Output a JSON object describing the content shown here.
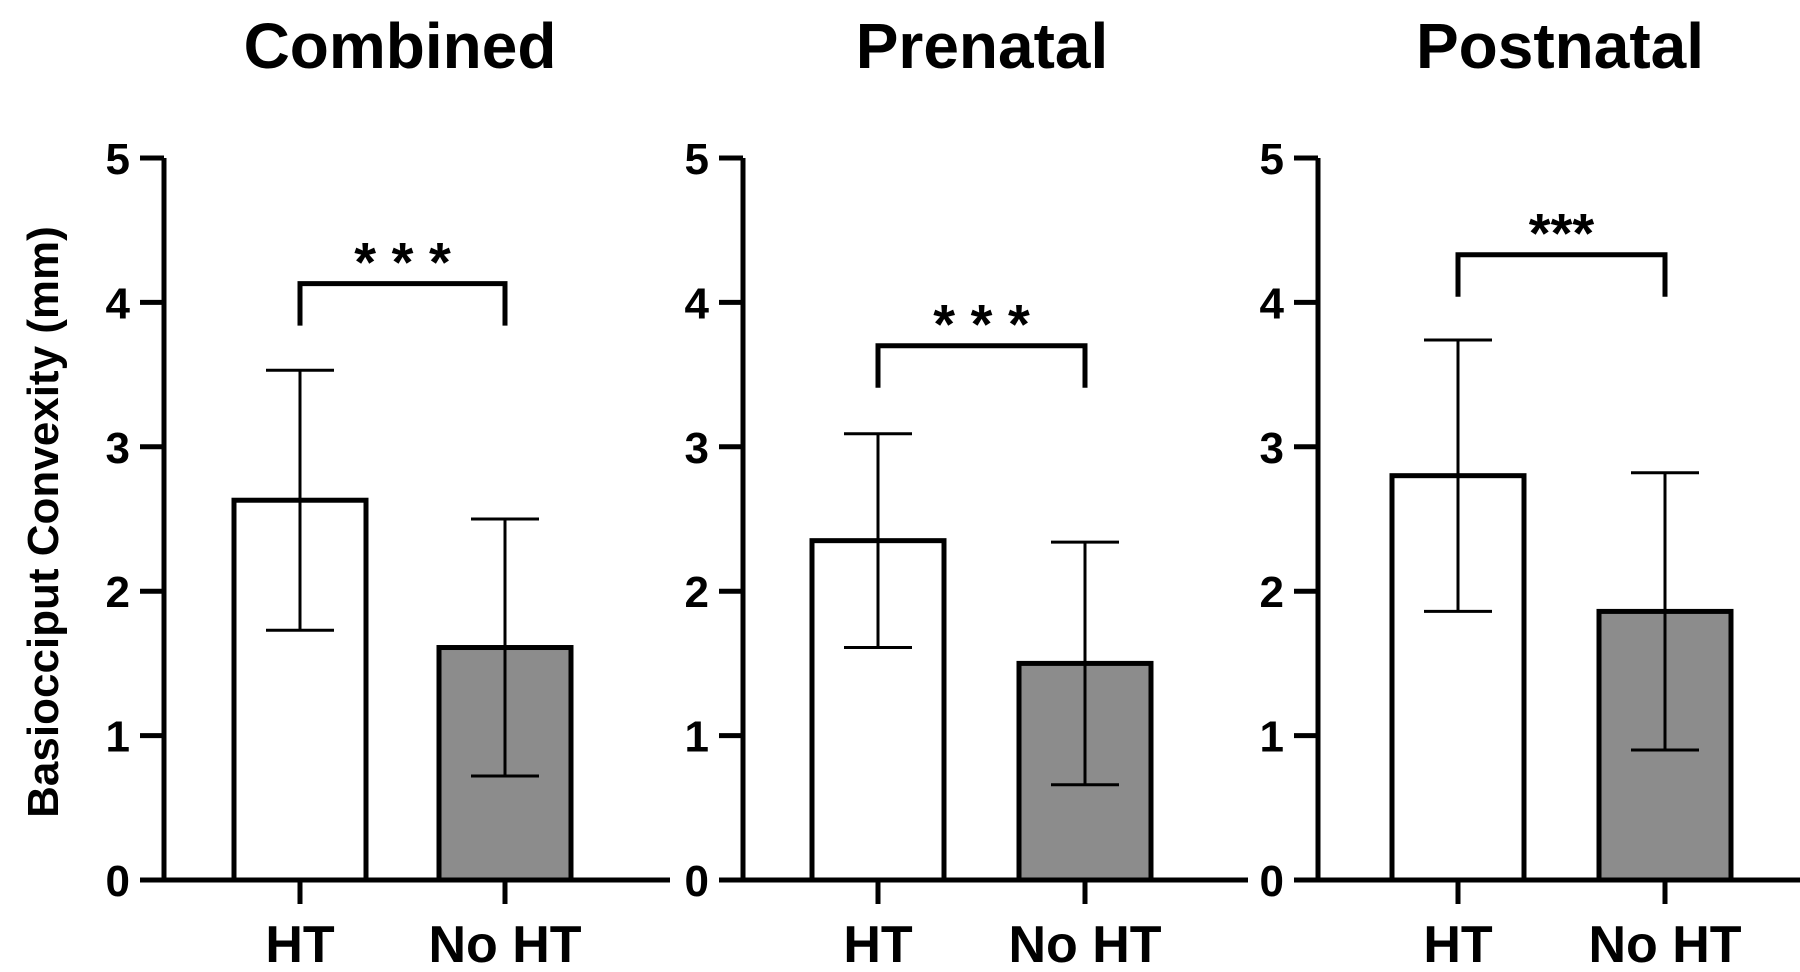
{
  "ylabel": "Basiocciput Convexity (mm)",
  "chart_data": [
    {
      "type": "bar",
      "title": "Combined",
      "categories": [
        "HT",
        "No HT"
      ],
      "values": [
        2.63,
        1.61
      ],
      "error": [
        0.9,
        0.89
      ],
      "bar_colors": [
        "#ffffff",
        "#8c8c8c"
      ],
      "ylim": [
        0,
        5
      ],
      "yticks": [
        "0",
        "1",
        "2",
        "3",
        "4",
        "5"
      ],
      "significance": "* * *",
      "bracket_y": 4.13
    },
    {
      "type": "bar",
      "title": "Prenatal",
      "categories": [
        "HT",
        "No HT"
      ],
      "values": [
        2.35,
        1.5
      ],
      "error": [
        0.74,
        0.84
      ],
      "bar_colors": [
        "#ffffff",
        "#8c8c8c"
      ],
      "ylim": [
        0,
        5
      ],
      "yticks": [
        "0",
        "1",
        "2",
        "3",
        "4",
        "5"
      ],
      "significance": "* * *",
      "bracket_y": 3.7
    },
    {
      "type": "bar",
      "title": "Postnatal",
      "categories": [
        "HT",
        "No HT"
      ],
      "values": [
        2.8,
        1.86
      ],
      "error": [
        0.94,
        0.96
      ],
      "bar_colors": [
        "#ffffff",
        "#8c8c8c"
      ],
      "ylim": [
        0,
        5
      ],
      "yticks": [
        "0",
        "1",
        "2",
        "3",
        "4",
        "5"
      ],
      "significance": "***",
      "bracket_y": 4.33
    }
  ]
}
